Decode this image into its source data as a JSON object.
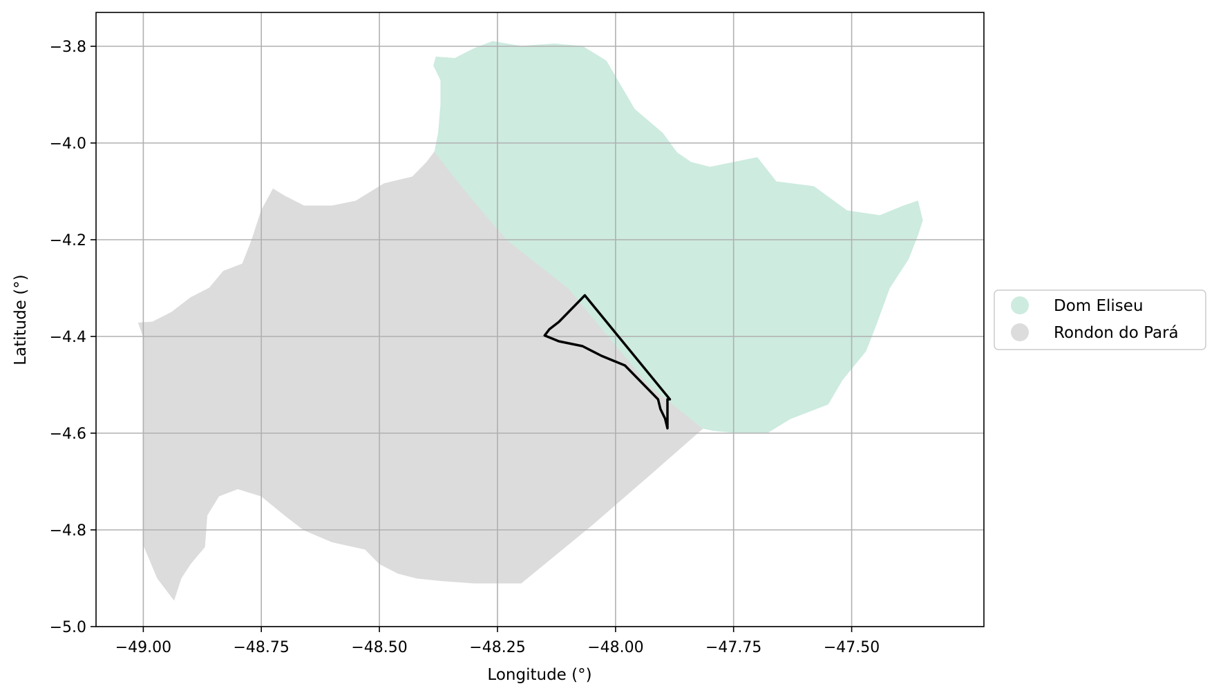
{
  "chart_data": {
    "type": "map",
    "xlabel": "Longitude (°)",
    "ylabel": "Latitude (°)",
    "xlim": [
      -49.1,
      -47.22
    ],
    "ylim": [
      -5.0,
      -3.73
    ],
    "grid": true,
    "x_ticks": [
      {
        "value": -49.0,
        "label": "−49.00"
      },
      {
        "value": -48.75,
        "label": "−48.75"
      },
      {
        "value": -48.5,
        "label": "−48.50"
      },
      {
        "value": -48.25,
        "label": "−48.25"
      },
      {
        "value": -48.0,
        "label": "−48.00"
      },
      {
        "value": -47.75,
        "label": "−47.75"
      },
      {
        "value": -47.5,
        "label": "−47.50"
      }
    ],
    "y_ticks": [
      {
        "value": -3.8,
        "label": "−3.8"
      },
      {
        "value": -4.0,
        "label": "−4.0"
      },
      {
        "value": -4.2,
        "label": "−4.2"
      },
      {
        "value": -4.4,
        "label": "−4.4"
      },
      {
        "value": -4.6,
        "label": "−4.6"
      },
      {
        "value": -4.8,
        "label": "−4.8"
      },
      {
        "value": -5.0,
        "label": "−5.0"
      }
    ],
    "legend": {
      "placement": "center-right",
      "entries": [
        {
          "label": "Dom Eliseu",
          "color": "#cdebdf"
        },
        {
          "label": "Rondon do Pará",
          "color": "#dcdcdc"
        }
      ]
    },
    "regions": [
      {
        "name": "Rondon do Pará",
        "color": "#dcdcdc",
        "coordinates": [
          [
            -48.383,
            -4.018
          ],
          [
            -48.4,
            -4.04
          ],
          [
            -48.43,
            -4.07
          ],
          [
            -48.49,
            -4.084
          ],
          [
            -48.55,
            -4.12
          ],
          [
            -48.6,
            -4.13
          ],
          [
            -48.66,
            -4.13
          ],
          [
            -48.7,
            -4.11
          ],
          [
            -48.725,
            -4.095
          ],
          [
            -48.75,
            -4.14
          ],
          [
            -48.77,
            -4.2
          ],
          [
            -48.79,
            -4.25
          ],
          [
            -48.83,
            -4.265
          ],
          [
            -48.86,
            -4.3
          ],
          [
            -48.9,
            -4.32
          ],
          [
            -48.94,
            -4.35
          ],
          [
            -48.98,
            -4.37
          ],
          [
            -49.01,
            -4.372
          ],
          [
            -49.0,
            -4.4
          ],
          [
            -49.0,
            -4.83
          ],
          [
            -48.97,
            -4.9
          ],
          [
            -48.935,
            -4.945
          ],
          [
            -48.92,
            -4.9
          ],
          [
            -48.9,
            -4.87
          ],
          [
            -48.87,
            -4.835
          ],
          [
            -48.865,
            -4.77
          ],
          [
            -48.84,
            -4.73
          ],
          [
            -48.8,
            -4.715
          ],
          [
            -48.75,
            -4.73
          ],
          [
            -48.7,
            -4.77
          ],
          [
            -48.66,
            -4.8
          ],
          [
            -48.6,
            -4.825
          ],
          [
            -48.53,
            -4.84
          ],
          [
            -48.5,
            -4.87
          ],
          [
            -48.46,
            -4.89
          ],
          [
            -48.42,
            -4.9
          ],
          [
            -48.37,
            -4.905
          ],
          [
            -48.3,
            -4.91
          ],
          [
            -48.2,
            -4.91
          ],
          [
            -48.05,
            -4.79
          ],
          [
            -47.92,
            -4.68
          ],
          [
            -47.815,
            -4.59
          ],
          [
            -47.93,
            -4.5
          ],
          [
            -48.1,
            -4.3
          ],
          [
            -48.23,
            -4.2
          ],
          [
            -48.3,
            -4.12
          ],
          [
            -48.35,
            -4.06
          ]
        ]
      },
      {
        "name": "Dom Eliseu",
        "color": "#cdebdf",
        "coordinates": [
          [
            -48.38,
            -3.822
          ],
          [
            -48.34,
            -3.825
          ],
          [
            -48.3,
            -3.805
          ],
          [
            -48.26,
            -3.79
          ],
          [
            -48.2,
            -3.8
          ],
          [
            -48.13,
            -3.795
          ],
          [
            -48.07,
            -3.8
          ],
          [
            -48.02,
            -3.83
          ],
          [
            -47.99,
            -3.88
          ],
          [
            -47.96,
            -3.93
          ],
          [
            -47.9,
            -3.98
          ],
          [
            -47.87,
            -4.02
          ],
          [
            -47.84,
            -4.04
          ],
          [
            -47.8,
            -4.05
          ],
          [
            -47.75,
            -4.04
          ],
          [
            -47.7,
            -4.03
          ],
          [
            -47.66,
            -4.08
          ],
          [
            -47.58,
            -4.09
          ],
          [
            -47.51,
            -4.14
          ],
          [
            -47.44,
            -4.15
          ],
          [
            -47.39,
            -4.13
          ],
          [
            -47.36,
            -4.12
          ],
          [
            -47.35,
            -4.16
          ],
          [
            -47.36,
            -4.19
          ],
          [
            -47.38,
            -4.24
          ],
          [
            -47.42,
            -4.3
          ],
          [
            -47.45,
            -4.38
          ],
          [
            -47.47,
            -4.43
          ],
          [
            -47.52,
            -4.49
          ],
          [
            -47.55,
            -4.54
          ],
          [
            -47.63,
            -4.57
          ],
          [
            -47.68,
            -4.6
          ],
          [
            -47.73,
            -4.6
          ],
          [
            -47.79,
            -4.595
          ],
          [
            -47.815,
            -4.59
          ],
          [
            -47.93,
            -4.5
          ],
          [
            -48.1,
            -4.3
          ],
          [
            -48.23,
            -4.2
          ],
          [
            -48.3,
            -4.12
          ],
          [
            -48.35,
            -4.06
          ],
          [
            -48.383,
            -4.018
          ],
          [
            -48.375,
            -3.98
          ],
          [
            -48.37,
            -3.92
          ],
          [
            -48.37,
            -3.87
          ],
          [
            -48.385,
            -3.84
          ]
        ]
      }
    ],
    "outline": {
      "color": "#000000",
      "coordinates": [
        [
          -48.065,
          -4.315
        ],
        [
          -48.08,
          -4.33
        ],
        [
          -48.1,
          -4.35
        ],
        [
          -48.12,
          -4.37
        ],
        [
          -48.14,
          -4.385
        ],
        [
          -48.15,
          -4.398
        ],
        [
          -48.12,
          -4.41
        ],
        [
          -48.07,
          -4.42
        ],
        [
          -48.03,
          -4.44
        ],
        [
          -47.98,
          -4.46
        ],
        [
          -47.95,
          -4.49
        ],
        [
          -47.93,
          -4.51
        ],
        [
          -47.91,
          -4.53
        ],
        [
          -47.905,
          -4.55
        ],
        [
          -47.895,
          -4.57
        ],
        [
          -47.89,
          -4.59
        ],
        [
          -47.89,
          -4.53
        ],
        [
          -47.885,
          -4.53
        ]
      ]
    }
  }
}
